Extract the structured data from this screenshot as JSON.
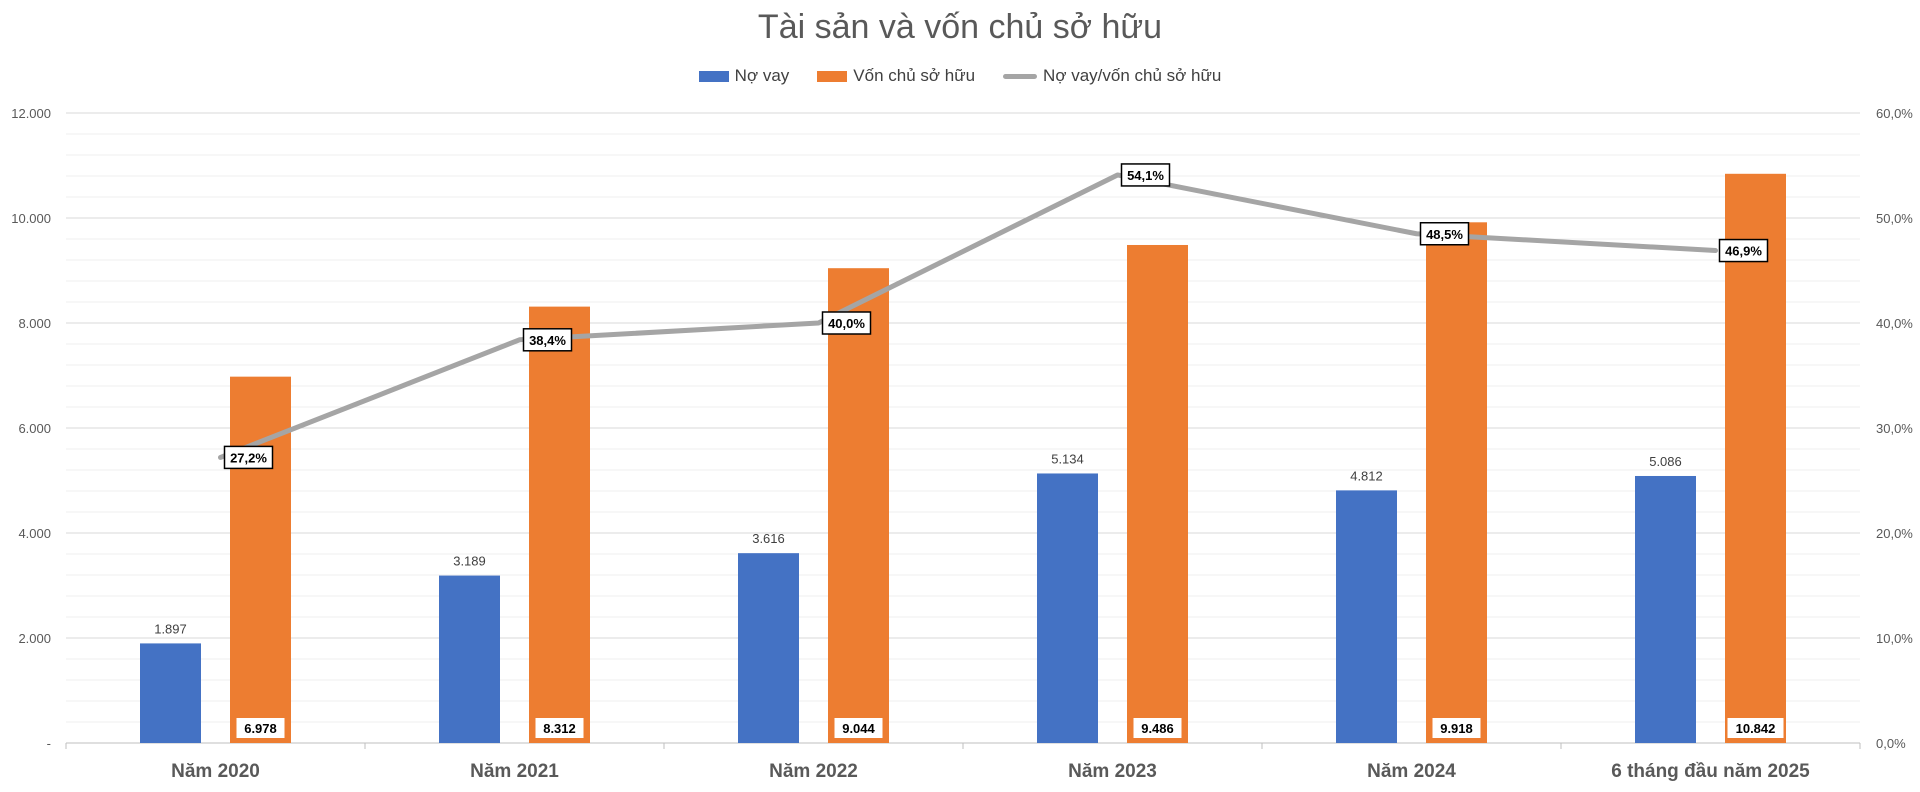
{
  "chart_data": {
    "type": "bar",
    "title": "Tài sản và vốn chủ sở hữu",
    "categories": [
      "Năm 2020",
      "Năm 2021",
      "Năm 2022",
      "Năm 2023",
      "Năm 2024",
      "6 tháng đầu năm 2025"
    ],
    "series": [
      {
        "name": "Nợ vay",
        "type": "bar",
        "axis": "left",
        "color": "#4472C4",
        "values": [
          1897,
          3189,
          3616,
          5134,
          4812,
          5086
        ],
        "labels": [
          "1.897",
          "3.189",
          "3.616",
          "5.134",
          "4.812",
          "5.086"
        ]
      },
      {
        "name": "Vốn chủ sở hữu",
        "type": "bar",
        "axis": "left",
        "color": "#ED7D31",
        "values": [
          6978,
          8312,
          9044,
          9486,
          9918,
          10842
        ],
        "labels": [
          "6.978",
          "8.312",
          "9.044",
          "9.486",
          "9.918",
          "10.842"
        ]
      },
      {
        "name": "Nợ vay/vốn chủ sở hữu",
        "type": "line",
        "axis": "right",
        "color": "#A5A5A5",
        "values": [
          27.2,
          38.4,
          40.0,
          54.1,
          48.5,
          46.9
        ],
        "labels": [
          "27,2%",
          "38,4%",
          "40,0%",
          "54,1%",
          "48,5%",
          "46,9%"
        ]
      }
    ],
    "left_axis": {
      "ylim": [
        0,
        12000
      ],
      "ticks": [
        0,
        2000,
        4000,
        6000,
        8000,
        10000,
        12000
      ],
      "tick_labels": [
        "-",
        "2.000",
        "4.000",
        "6.000",
        "8.000",
        "10.000",
        "12.000"
      ]
    },
    "right_axis": {
      "ylim": [
        0,
        60
      ],
      "ticks": [
        0,
        10,
        20,
        30,
        40,
        50,
        60
      ],
      "tick_labels": [
        "0,0%",
        "10,0%",
        "20,0%",
        "30,0%",
        "40,0%",
        "50,0%",
        "60,0%"
      ]
    },
    "grid": true,
    "legend": "top-center"
  }
}
